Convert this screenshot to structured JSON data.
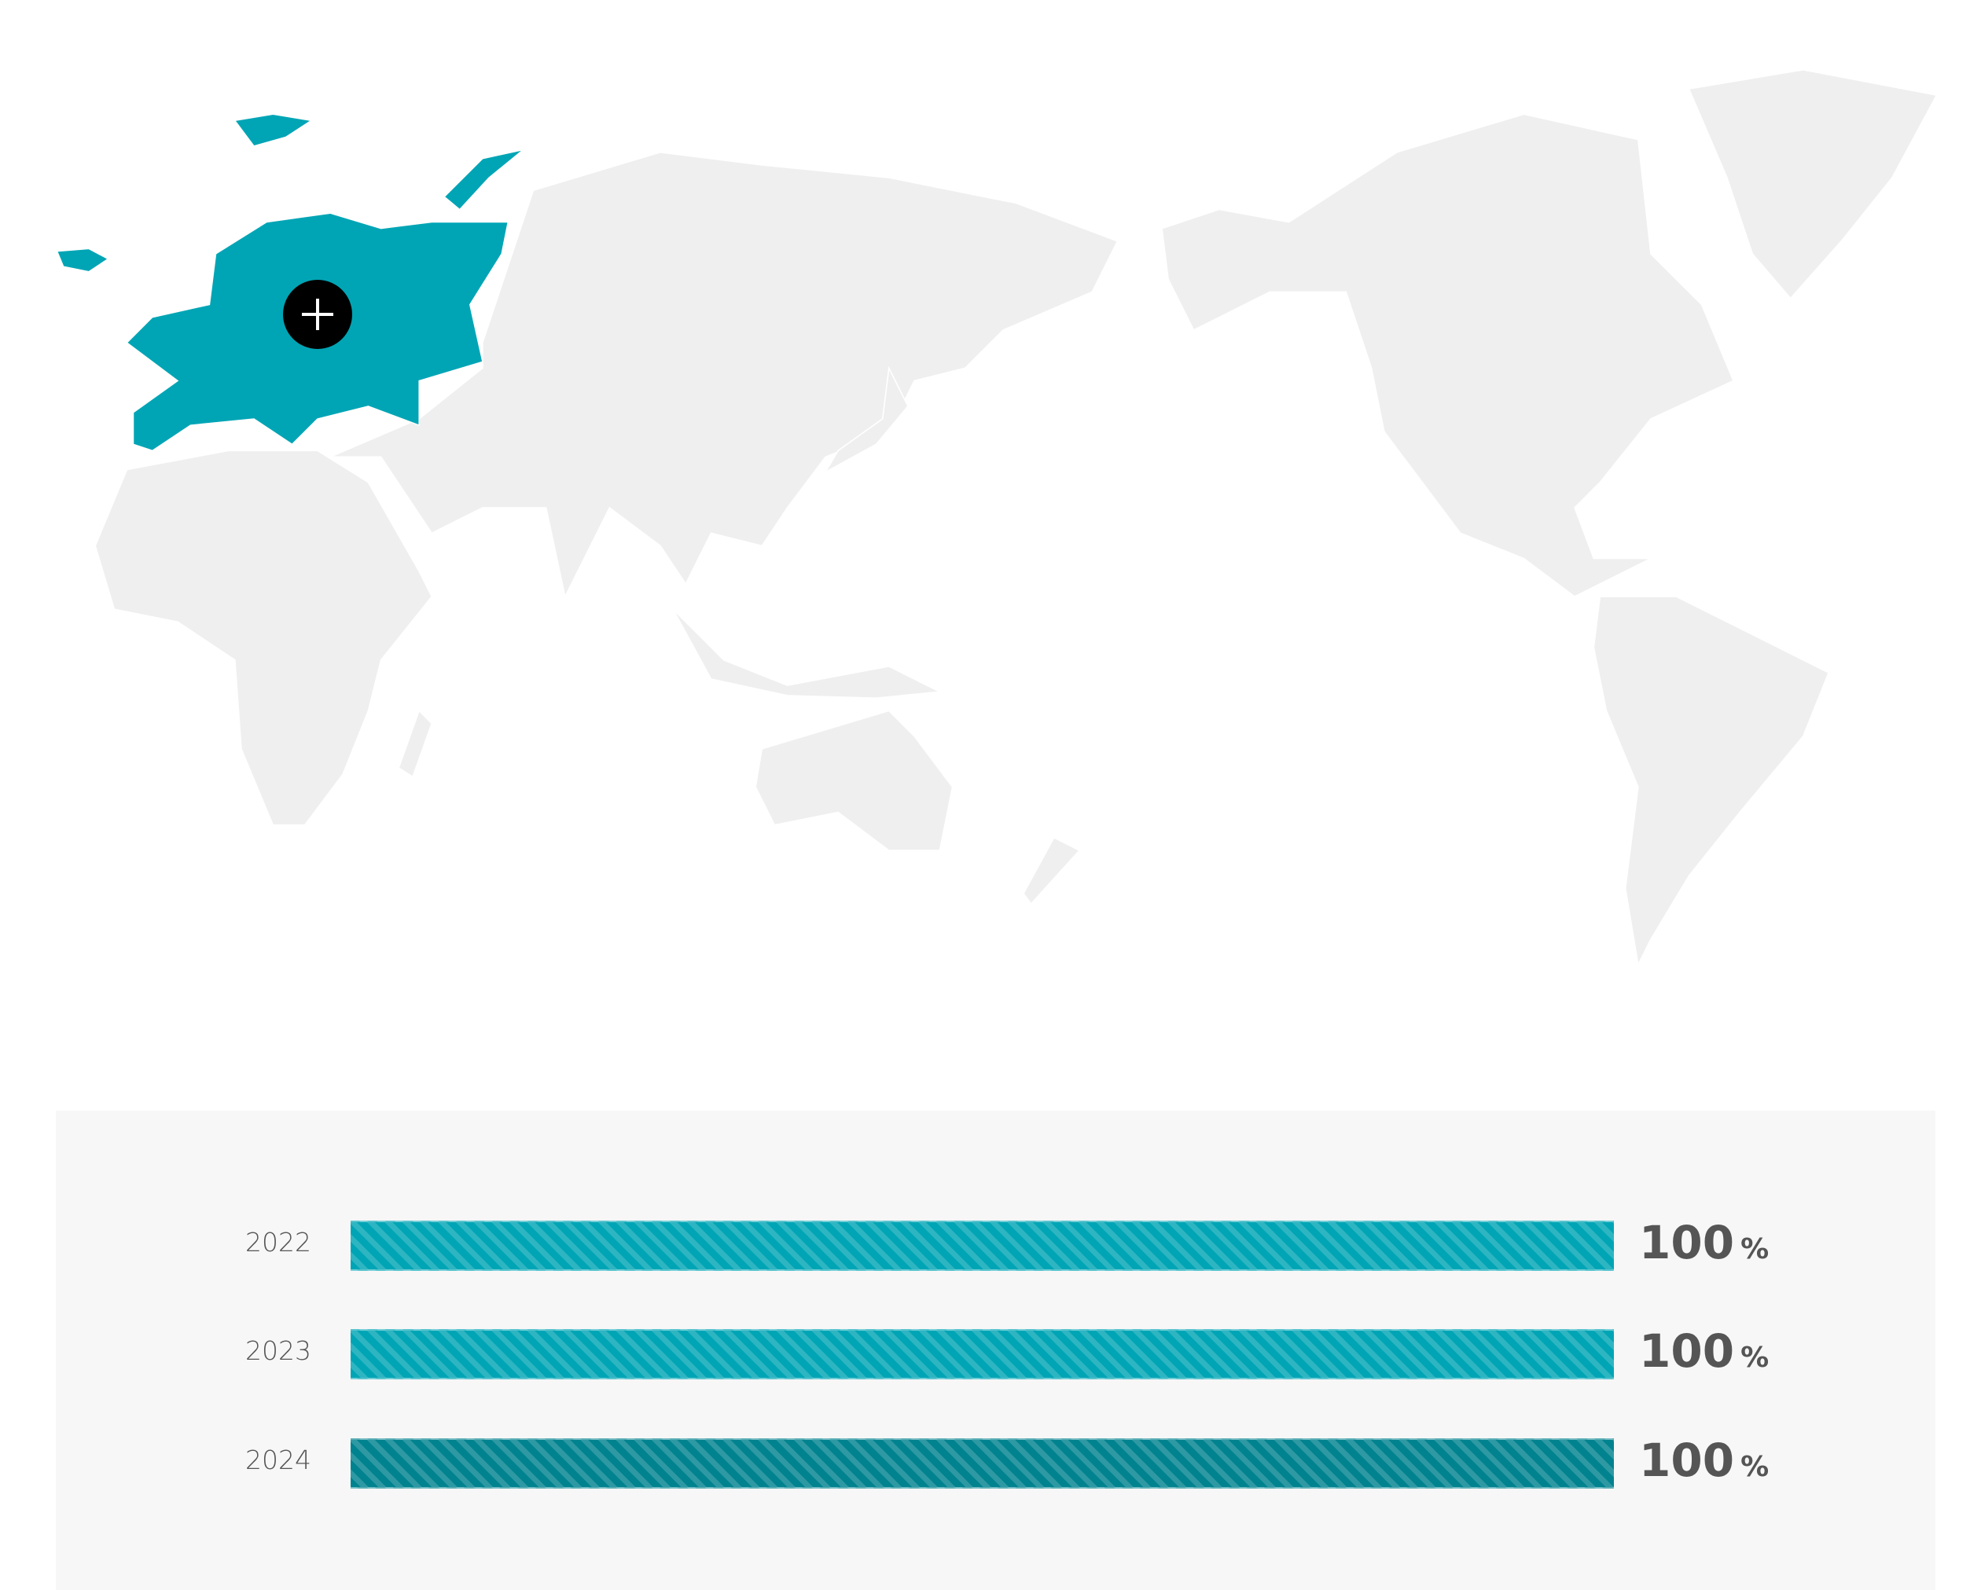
{
  "map": {
    "highlighted_region": "Europe",
    "highlight_color": "#00a5b5",
    "land_color": "#efefef",
    "expand_button_icon": "plus-icon"
  },
  "chart_data": {
    "type": "bar",
    "orientation": "horizontal",
    "categories": [
      "2022",
      "2023",
      "2024"
    ],
    "values": [
      100,
      100,
      100
    ],
    "unit": "%",
    "xlim": [
      0,
      100
    ],
    "colors": [
      "#00a5b5",
      "#00a5b5",
      "#00838f"
    ],
    "pattern": "diagonal-stripes",
    "value_labels": [
      "100",
      "100",
      "100"
    ]
  }
}
